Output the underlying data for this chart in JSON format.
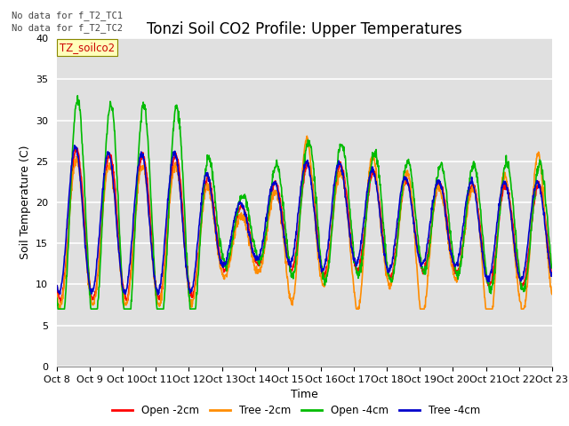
{
  "title": "Tonzi Soil CO2 Profile: Upper Temperatures",
  "xlabel": "Time",
  "ylabel": "Soil Temperature (C)",
  "ylim": [
    0,
    40
  ],
  "yticks": [
    0,
    5,
    10,
    15,
    20,
    25,
    30,
    35,
    40
  ],
  "xtick_labels": [
    "Oct 8",
    "Oct 9",
    "Oct 10",
    "Oct 11",
    "Oct 12",
    "Oct 13",
    "Oct 14",
    "Oct 15",
    "Oct 16",
    "Oct 17",
    "Oct 18",
    "Oct 19",
    "Oct 20",
    "Oct 21",
    "Oct 22",
    "Oct 23"
  ],
  "legend_entries": [
    "Open -2cm",
    "Tree -2cm",
    "Open -4cm",
    "Tree -4cm"
  ],
  "legend_colors": [
    "#ff0000",
    "#ff8c00",
    "#00bb00",
    "#0000cc"
  ],
  "no_data_text": [
    "No data for f_T2_TC1",
    "No data for f_T2_TC2"
  ],
  "dataset_label": "TZ_soilco2",
  "background_color": "#e0e0e0",
  "grid_color": "#ffffff",
  "title_fontsize": 12,
  "axis_fontsize": 9,
  "tick_fontsize": 8,
  "line_width": 1.2
}
